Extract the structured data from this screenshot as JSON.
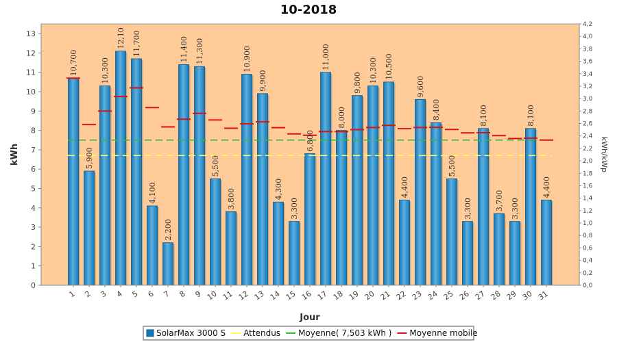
{
  "chart_data": {
    "type": "bar",
    "title": "10-2018",
    "xlabel": "Jour",
    "ylabel": "kWh",
    "y2label": "kWh/kWp",
    "ylim": [
      0,
      13.5
    ],
    "y2lim": [
      0,
      4.2
    ],
    "grid": false,
    "categories": [
      "1",
      "2",
      "3",
      "4",
      "5",
      "6",
      "7",
      "8",
      "9",
      "10",
      "11",
      "12",
      "13",
      "14",
      "15",
      "16",
      "17",
      "18",
      "19",
      "20",
      "21",
      "22",
      "23",
      "24",
      "25",
      "26",
      "27",
      "28",
      "29",
      "30",
      "31"
    ],
    "series": [
      {
        "name": "SolarMax 3000 S",
        "type": "bar",
        "values": [
          10.7,
          5.9,
          10.3,
          12.1,
          11.7,
          4.1,
          2.2,
          11.4,
          11.3,
          5.5,
          3.8,
          10.9,
          9.9,
          4.3,
          3.3,
          6.8,
          11.0,
          8.0,
          9.8,
          10.3,
          10.5,
          4.4,
          9.6,
          8.4,
          5.5,
          3.3,
          8.1,
          3.7,
          3.3,
          8.1,
          4.4
        ],
        "labels": [
          "10,700",
          "5,900",
          "10,300",
          "12,10",
          "11,700",
          "4,100",
          "2,200",
          "11,400",
          "11,300",
          "5,500",
          "3,800",
          "10,900",
          "9,900",
          "4,300",
          "3,300",
          "6,800",
          "11,000",
          "8,000",
          "9,800",
          "10,300",
          "10,500",
          "4,400",
          "9,600",
          "8,400",
          "5,500",
          "3,300",
          "8,100",
          "3,700",
          "3,300",
          "8,100",
          "4,400"
        ],
        "color": "#1777b5"
      },
      {
        "name": "Attendus",
        "type": "line",
        "value": 6.7,
        "color": "#ffff55"
      },
      {
        "name": "Moyenne( 7,503 kWh )",
        "type": "line",
        "value": 7.503,
        "color": "#33bb33"
      },
      {
        "name": "Moyenne mobile",
        "type": "step",
        "values": [
          10.7,
          8.3,
          9.0,
          9.75,
          10.2,
          9.18,
          8.18,
          8.58,
          8.88,
          8.54,
          8.11,
          8.34,
          8.44,
          8.14,
          7.82,
          7.75,
          7.94,
          7.94,
          8.04,
          8.15,
          8.26,
          8.09,
          8.15,
          8.16,
          8.05,
          7.87,
          7.88,
          7.73,
          7.58,
          7.6,
          7.5
        ],
        "color": "#dd1111"
      }
    ],
    "legend_position": "bottom"
  },
  "colors": {
    "plot_background": "#ffcc99",
    "bar": "#1777b5",
    "bar_light": "#5ab0e0"
  }
}
